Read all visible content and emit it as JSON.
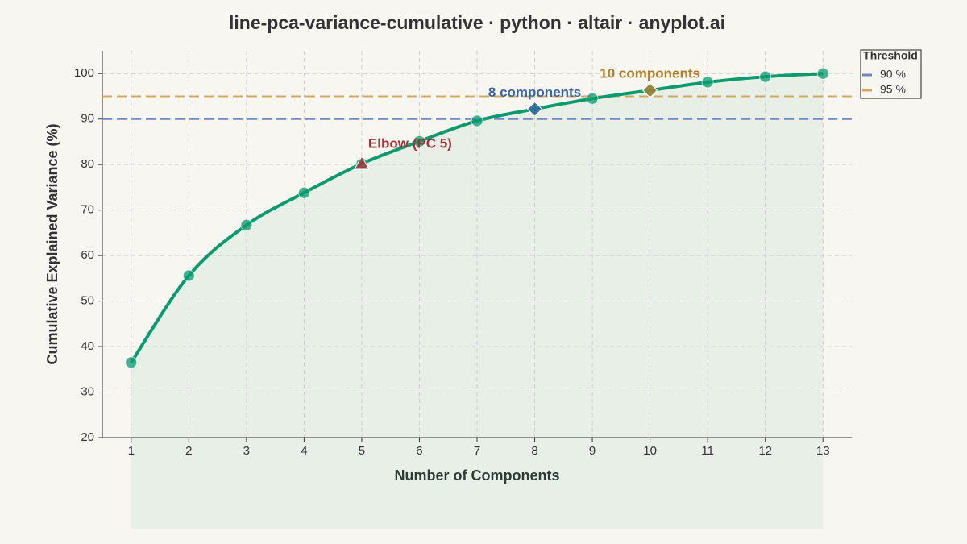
{
  "chart_data": {
    "type": "line",
    "title": "line-pca-variance-cumulative · python · altair · anyplot.ai",
    "x_label": "Number of Components",
    "y_label": "Cumulative Explained Variance (%)",
    "x": [
      1,
      2,
      3,
      4,
      5,
      6,
      7,
      8,
      9,
      10,
      11,
      12,
      13
    ],
    "series": [
      {
        "name": "Cumulative Explained Variance",
        "color": "#0a9a6e",
        "values": [
          36.5,
          55.6,
          66.7,
          73.8,
          80.2,
          85.1,
          89.6,
          92.2,
          94.5,
          96.3,
          98.1,
          99.3,
          100.0
        ]
      }
    ],
    "xlim": [
      0.5,
      13.5
    ],
    "ylim": [
      20,
      105
    ],
    "xticks": [
      1,
      2,
      3,
      4,
      5,
      6,
      7,
      8,
      9,
      10,
      11,
      12,
      13
    ],
    "yticks": [
      20,
      30,
      40,
      50,
      60,
      70,
      80,
      90,
      100
    ],
    "grid": true,
    "legend_title": "Threshold",
    "thresholds": [
      {
        "value": 90,
        "label": "90 %",
        "color": "#7088c0"
      },
      {
        "value": 95,
        "label": "95 %",
        "color": "#d0a860"
      }
    ],
    "annotations": [
      {
        "text": "Elbow (PC 5)",
        "x": 5,
        "marker": "triangle",
        "color": "#a8303a"
      },
      {
        "text": "8 components",
        "x": 8,
        "marker": "diamond",
        "color": "#3a64a0"
      },
      {
        "text": "10 components",
        "x": 10,
        "marker": "diamond",
        "color": "#b08030"
      }
    ]
  }
}
